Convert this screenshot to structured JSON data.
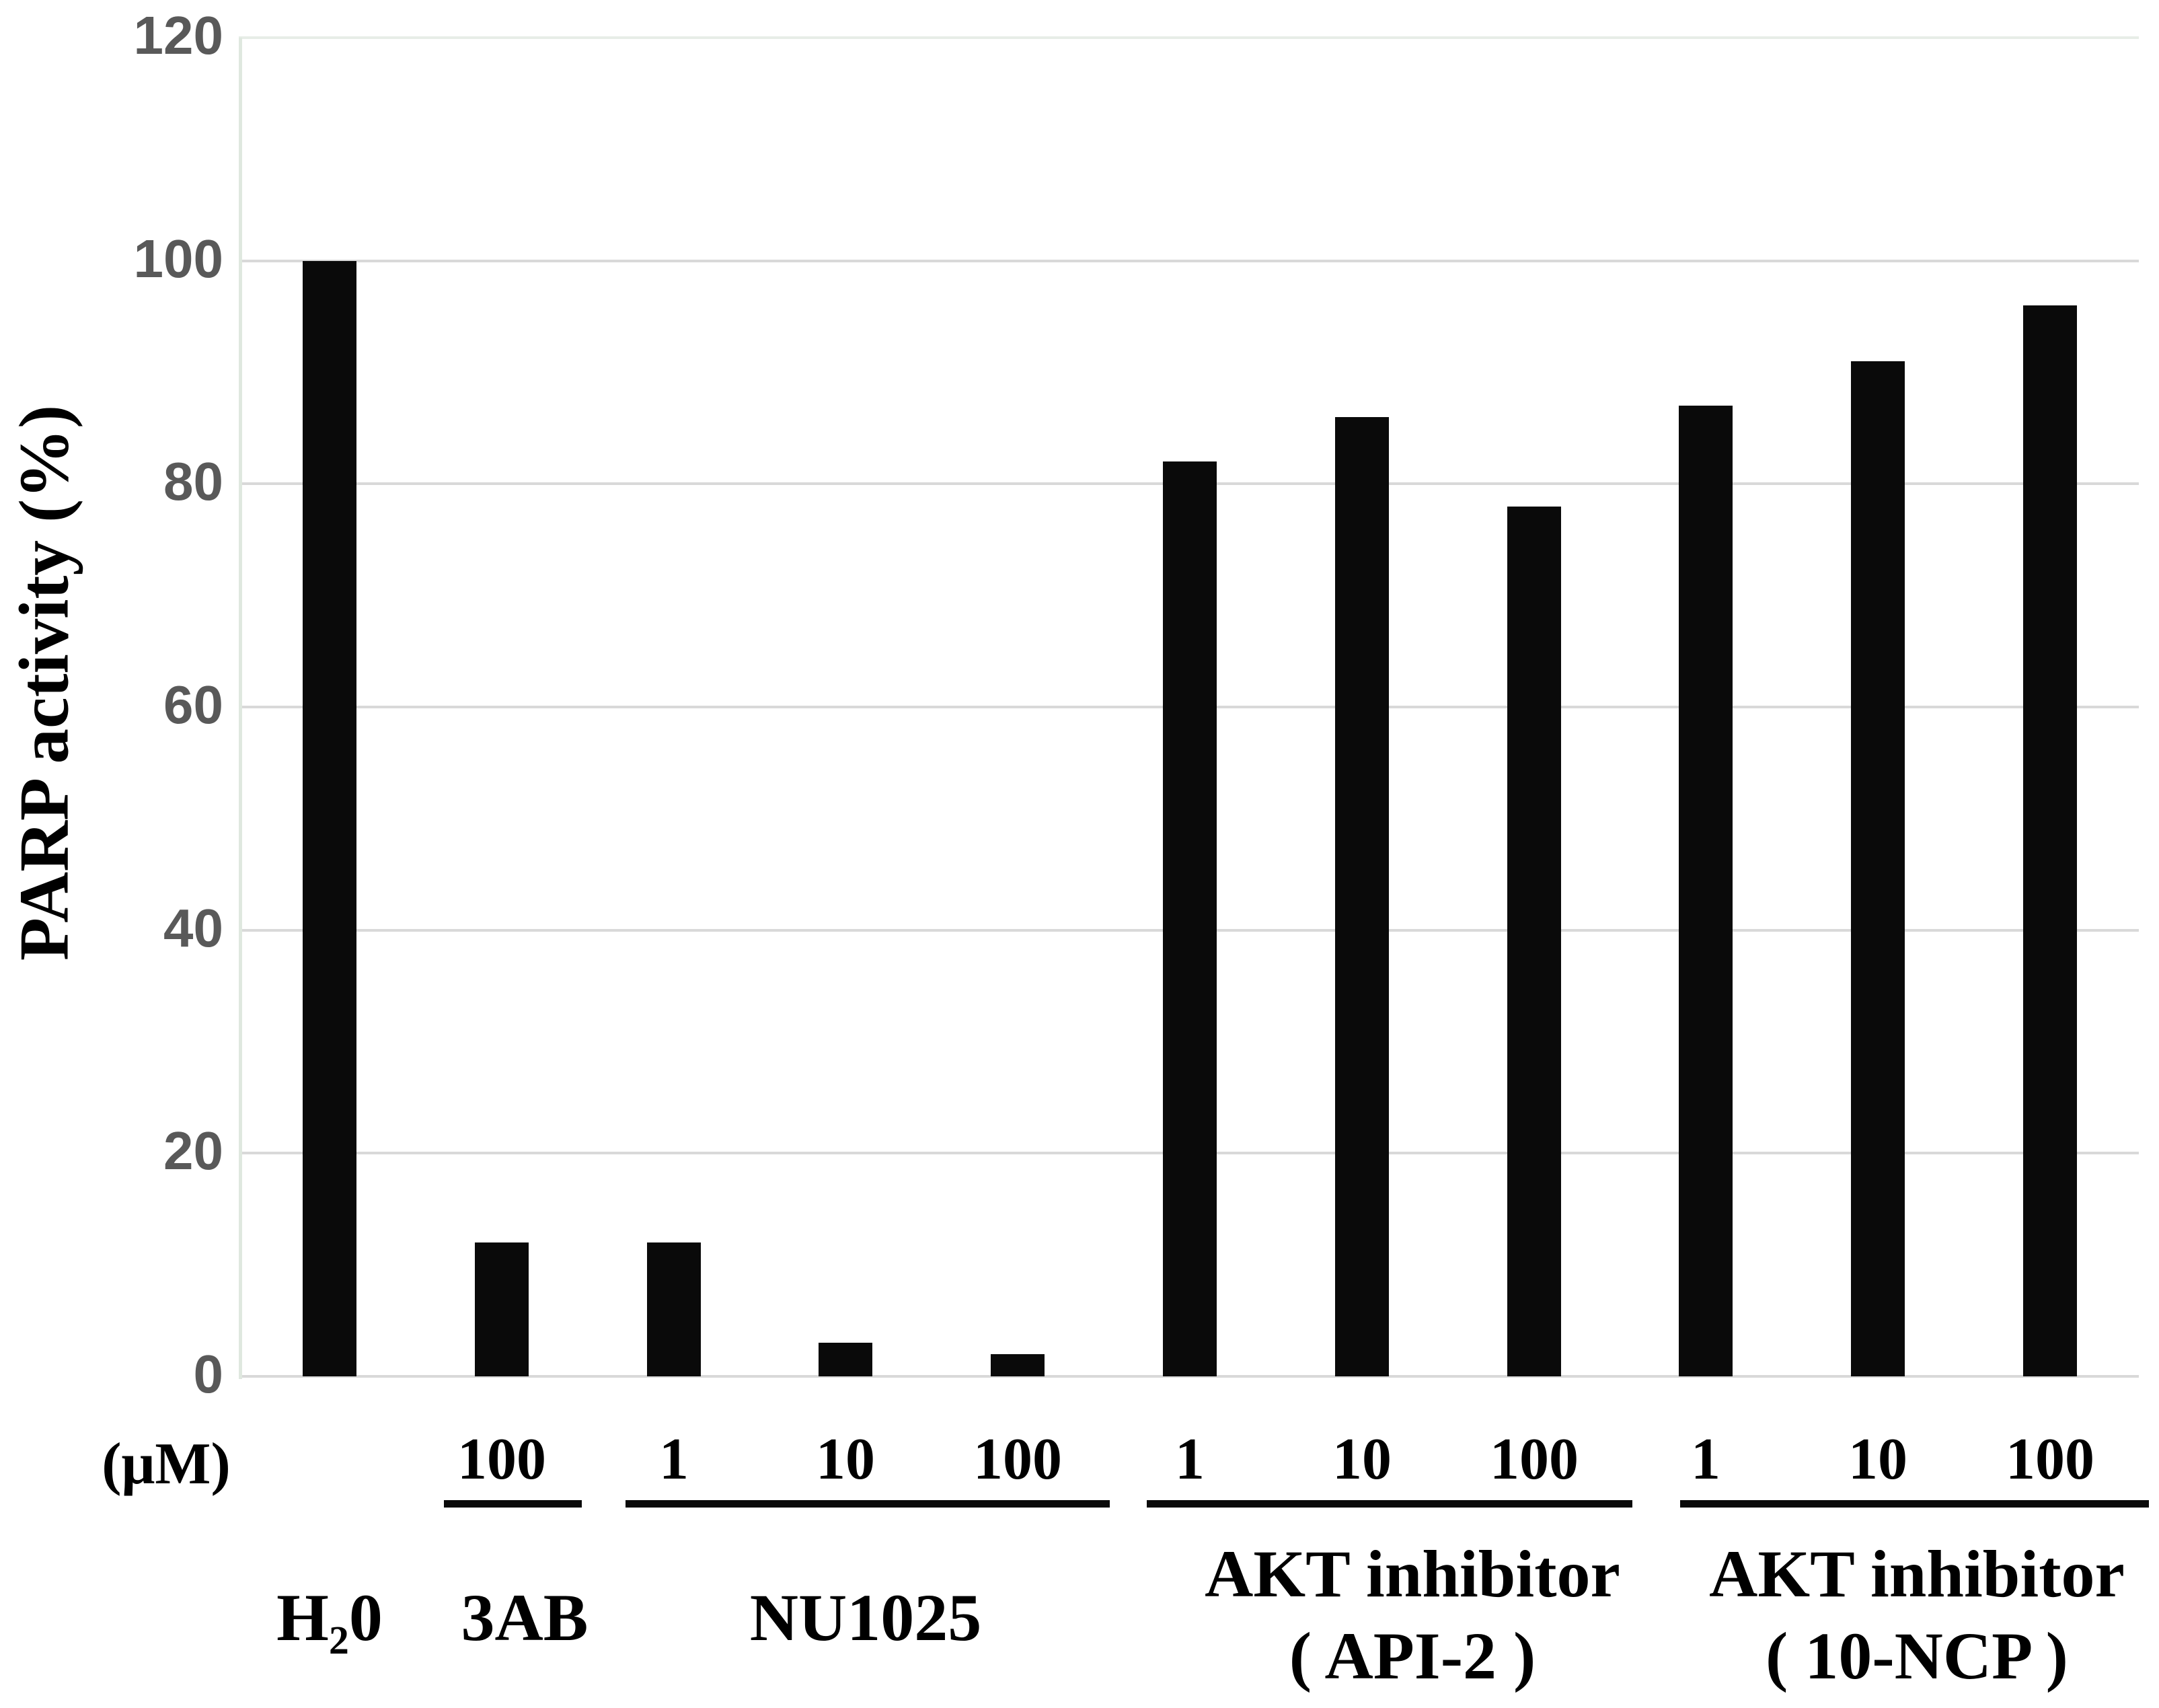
{
  "chart_data": {
    "type": "bar",
    "title": "",
    "ylabel": "PARP activity (%)",
    "xlabel_unit": "(μM)",
    "ylim": [
      0,
      120
    ],
    "yticks": [
      120,
      100,
      80,
      60,
      40,
      20,
      0
    ],
    "grid": true,
    "legend": "none",
    "bar_color": "#0a0a0a",
    "tick_label_color": "#595959",
    "gridline_color": "#d9d9d9",
    "axis_line_color": "#dfe8df",
    "top_border_color": "#e7ede7",
    "groups": [
      {
        "label": "H₂0",
        "sublabel": "",
        "underlined": false,
        "bars": [
          {
            "concentration": "",
            "value": 100
          }
        ]
      },
      {
        "label": "3AB",
        "sublabel": "",
        "underlined": true,
        "bars": [
          {
            "concentration": "100",
            "value": 12
          }
        ]
      },
      {
        "label": "NU1025",
        "sublabel": "",
        "underlined": true,
        "bars": [
          {
            "concentration": "1",
            "value": 12
          },
          {
            "concentration": "10",
            "value": 3
          },
          {
            "concentration": "100",
            "value": 2
          }
        ]
      },
      {
        "label": "AKT inhibitor",
        "sublabel": "( API-2 )",
        "underlined": true,
        "bars": [
          {
            "concentration": "1",
            "value": 82
          },
          {
            "concentration": "10",
            "value": 86
          },
          {
            "concentration": "100",
            "value": 78
          }
        ]
      },
      {
        "label": "AKT inhibitor",
        "sublabel": "( 10-NCP )",
        "underlined": true,
        "bars": [
          {
            "concentration": "1",
            "value": 87
          },
          {
            "concentration": "10",
            "value": 91
          },
          {
            "concentration": "100",
            "value": 96
          }
        ]
      }
    ]
  }
}
